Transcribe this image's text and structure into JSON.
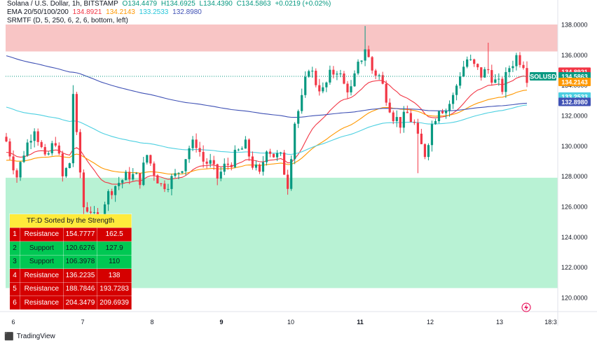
{
  "header": {
    "symbol_line": "Solana / U.S. Dollar, 1h, BITSTAMP",
    "o": "O134.4479",
    "h": "H134.6925",
    "l": "L134.4390",
    "c": "C134.5863",
    "chg": "+0.0219 (+0.02%)",
    "ema_label": "EMA 20/50/100/200",
    "ema_values": [
      "134.8921",
      "134.2143",
      "133.2533",
      "132.8980"
    ],
    "srmtf_label": "SRMTF (D, 5, 250, 6, 2, 6, bottom, left)"
  },
  "colors": {
    "up": "#089981",
    "down": "#f23645",
    "ema20": "#f23645",
    "ema50": "#ff9800",
    "ema100": "#4dd0e1",
    "ema200": "#3f51b5",
    "resistance_zone": "#f8c5c5",
    "support_zone": "#b8f2d4",
    "price_label": "#089981"
  },
  "table": {
    "title": "TF:D Sorted by the Strength",
    "rows": [
      {
        "n": "1",
        "type": "Resistance",
        "low": "154.7777",
        "high": "162.5",
        "kind": "res"
      },
      {
        "n": "2",
        "type": "Support",
        "low": "120.6276",
        "high": "127.9",
        "kind": "sup"
      },
      {
        "n": "3",
        "type": "Support",
        "low": "106.3978",
        "high": "110",
        "kind": "sup"
      },
      {
        "n": "4",
        "type": "Resistance",
        "low": "136.2235",
        "high": "138",
        "kind": "res"
      },
      {
        "n": "5",
        "type": "Resistance",
        "low": "188.7846",
        "high": "193.7283",
        "kind": "res"
      },
      {
        "n": "6",
        "type": "Resistance",
        "low": "204.3479",
        "high": "209.6939",
        "kind": "res"
      }
    ]
  },
  "footer": {
    "brand": "TradingView",
    "brand_icon": "tradingview-logo-icon"
  },
  "chart_data": {
    "type": "candlestick",
    "title": "Solana / U.S. Dollar, 1h, BITSTAMP",
    "symbol": "SOLUSD",
    "ylim": [
      119.5,
      138.8
    ],
    "y_ticks": [
      "138.0000",
      "136.0000",
      "134.0000",
      "132.0000",
      "130.0000",
      "128.0000",
      "126.0000",
      "124.0000",
      "122.0000",
      "120.0000"
    ],
    "x_ticks": [
      "6",
      "7",
      "8",
      "9",
      "10",
      "11",
      "12",
      "13",
      "18:3"
    ],
    "zones": [
      {
        "type": "resistance",
        "from": 136.2235,
        "to": 138
      },
      {
        "type": "support",
        "from": 120.6276,
        "to": 127.9
      }
    ],
    "last_price": {
      "label": "SOLUSD",
      "value": "134.5863"
    },
    "ema_labels": [
      {
        "name": "EMA 20",
        "value": "134.8921"
      },
      {
        "name": "EMA 50",
        "value": "134.2143"
      },
      {
        "name": "EMA 100",
        "value": "133.2533"
      },
      {
        "name": "EMA 200",
        "value": "132.8980"
      }
    ],
    "close_path": [
      [
        0,
        130.3
      ],
      [
        3,
        128.0
      ],
      [
        5,
        129.6
      ],
      [
        8,
        131.3
      ],
      [
        11,
        129.0
      ],
      [
        14,
        130.4
      ],
      [
        16,
        127.9
      ],
      [
        18,
        128.9
      ],
      [
        19,
        133.5
      ],
      [
        20,
        130.5
      ],
      [
        22,
        126.0
      ],
      [
        24,
        125.8
      ],
      [
        26,
        124.6
      ],
      [
        28,
        126.4
      ],
      [
        30,
        127.2
      ],
      [
        32,
        127.6
      ],
      [
        35,
        128.1
      ],
      [
        38,
        127.8
      ],
      [
        40,
        129.4
      ],
      [
        42,
        128.3
      ],
      [
        44,
        127.4
      ],
      [
        46,
        127.6
      ],
      [
        48,
        128.0
      ],
      [
        50,
        128.7
      ],
      [
        52,
        129.9
      ],
      [
        54,
        130.2
      ],
      [
        56,
        129.0
      ],
      [
        58,
        128.8
      ],
      [
        60,
        127.9
      ],
      [
        62,
        128.6
      ],
      [
        64,
        129.0
      ],
      [
        66,
        129.6
      ],
      [
        68,
        130.0
      ],
      [
        70,
        128.8
      ],
      [
        72,
        128.0
      ],
      [
        74,
        130.0
      ],
      [
        76,
        129.4
      ],
      [
        78,
        129.2
      ],
      [
        80,
        127.5
      ],
      [
        82,
        131.6
      ],
      [
        84,
        133.0
      ],
      [
        86,
        135.3
      ],
      [
        88,
        134.2
      ],
      [
        90,
        133.6
      ],
      [
        92,
        134.6
      ],
      [
        94,
        135.1
      ],
      [
        96,
        134.0
      ],
      [
        98,
        133.7
      ],
      [
        100,
        135.2
      ],
      [
        102,
        136.5
      ],
      [
        104,
        135.0
      ],
      [
        106,
        134.6
      ],
      [
        108,
        133.3
      ],
      [
        110,
        132.0
      ],
      [
        112,
        131.5
      ],
      [
        114,
        132.1
      ],
      [
        116,
        131.4
      ],
      [
        117,
        130.4
      ],
      [
        119,
        129.5
      ],
      [
        121,
        131.4
      ],
      [
        123,
        132.6
      ],
      [
        125,
        132.4
      ],
      [
        127,
        133.2
      ],
      [
        129,
        134.8
      ],
      [
        131,
        135.7
      ],
      [
        133,
        135.2
      ],
      [
        135,
        134.7
      ],
      [
        137,
        135.0
      ],
      [
        139,
        134.2
      ],
      [
        141,
        133.8
      ],
      [
        143,
        135.2
      ],
      [
        145,
        135.9
      ],
      [
        147,
        135.5
      ],
      [
        148,
        134.6
      ]
    ]
  }
}
